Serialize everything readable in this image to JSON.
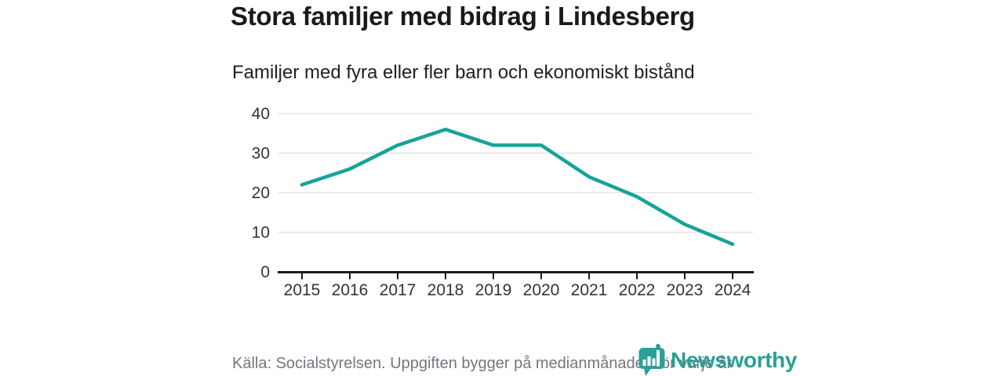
{
  "chart": {
    "title": "Stora familjer med bidrag i Lindesberg",
    "subtitle": "Familjer med fyra eller fler barn och ekonomiskt bistånd"
  },
  "chart_data": {
    "type": "line",
    "categories": [
      "2015",
      "2016",
      "2017",
      "2018",
      "2019",
      "2020",
      "2021",
      "2022",
      "2023",
      "2024"
    ],
    "series": [
      {
        "name": "Familjer med fyra eller fler barn och ekonomiskt bistånd",
        "values": [
          22,
          26,
          32,
          36,
          32,
          32,
          24,
          19,
          12,
          7
        ],
        "color": "#17a398"
      }
    ],
    "title": "Stora familjer med bidrag i Lindesberg",
    "subtitle": "Familjer med fyra eller fler barn och ekonomiskt bistånd",
    "xlabel": "",
    "ylabel": "",
    "ylim": [
      0,
      40
    ],
    "yticks": [
      0,
      10,
      20,
      30,
      40
    ],
    "grid": true,
    "legend": false,
    "colors": {
      "line": "#17a398",
      "gridline": "#e3e3e3",
      "axis": "#1a1a1a",
      "tick_label": "#333333"
    }
  },
  "footer": {
    "source": "Källa: Socialstyrelsen. Uppgiften bygger på medianmånaden för varje år",
    "logo_text": "Newsworthy",
    "logo_color": "#2aa096"
  },
  "icons": {
    "newsworthy_logo": "shield-with-bar-chart-and-dot"
  }
}
